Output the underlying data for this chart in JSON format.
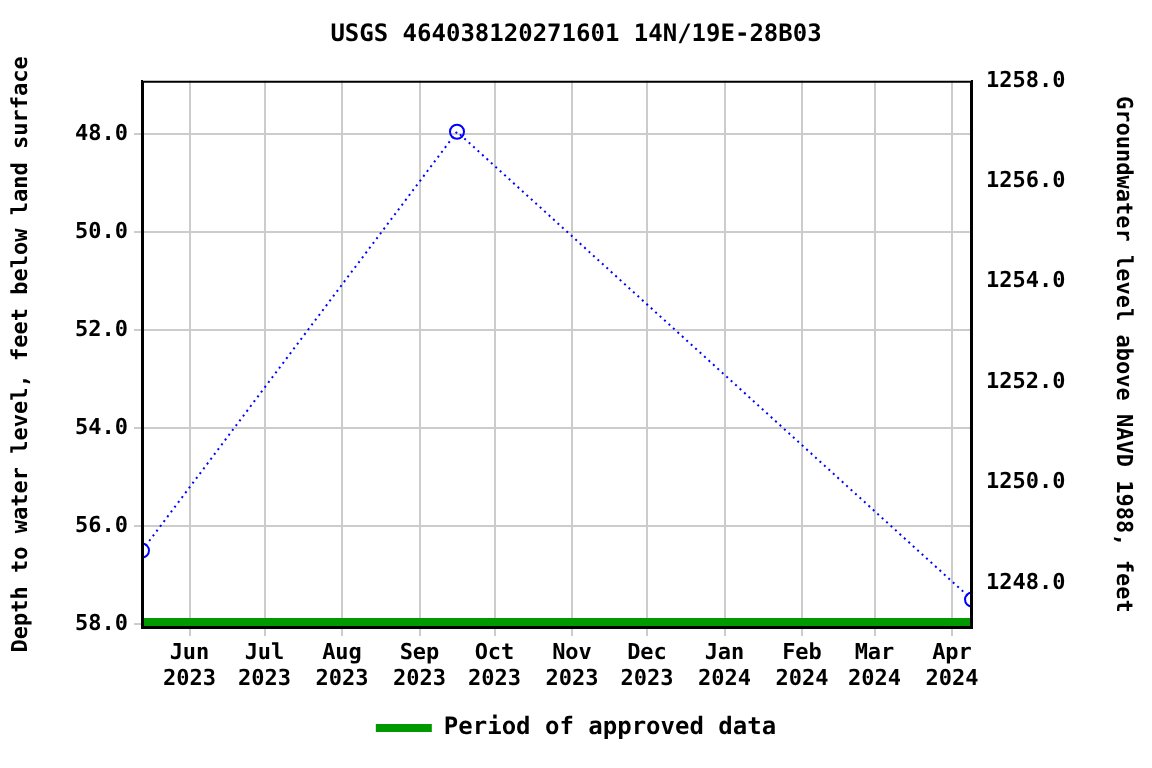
{
  "chart_data": {
    "type": "line",
    "title": "USGS 464038120271601 14N/19E-28B03",
    "ylabel": "Depth to water level, feet below land surface",
    "y2label": "Groundwater level above NAVD 1988, feet",
    "x": [
      "2023-05-13",
      "2023-09-16",
      "2024-04-09"
    ],
    "series": [
      {
        "color": "#0000ff",
        "values": [
          56.5,
          47.95,
          57.5
        ]
      },
      {
        "name": "Period of approved data",
        "type": "line",
        "line_style": "solid",
        "marker": "none",
        "color": "#009900",
        "x": [
          "2023-05-13",
          "2024-04-09"
        ],
        "values": [
          57.96,
          57.96
        ]
      }
    ],
    "xlim": [
      "2023-05-13",
      "2024-04-09"
    ],
    "xticks": [
      {
        "value": "2023-06-01",
        "label": "Jun 2023"
      },
      {
        "value": "2023-07-01",
        "label": "Jul 2023"
      },
      {
        "value": "2023-08-01",
        "label": "Aug 2023"
      },
      {
        "value": "2023-09-01",
        "label": "Sep 2023"
      },
      {
        "value": "2023-10-01",
        "label": "Oct 2023"
      },
      {
        "value": "2023-11-01",
        "label": "Nov 2023"
      },
      {
        "value": "2023-12-01",
        "label": "Dec 2023"
      },
      {
        "value": "2024-01-01",
        "label": "Jan 2024"
      },
      {
        "value": "2024-02-01",
        "label": "Feb 2024"
      },
      {
        "value": "2024-03-01",
        "label": "Mar 2024"
      },
      {
        "value": "2024-04-01",
        "label": "Apr 2024"
      }
    ],
    "ylim": [
      58.08,
      46.91
    ],
    "yticks": [
      {
        "value": 48,
        "label": "48.0"
      },
      {
        "value": 50,
        "label": "50.0"
      },
      {
        "value": 52,
        "label": "52.0"
      },
      {
        "value": 54,
        "label": "54.0"
      },
      {
        "value": 56,
        "label": "56.0"
      },
      {
        "value": 58,
        "label": "58.0"
      }
    ],
    "y2lim": [
      1247.1,
      1258.0
    ],
    "y2ticks": [
      {
        "value": 1248,
        "label": "1248.0"
      },
      {
        "value": 1250,
        "label": "1250.0"
      },
      {
        "value": 1252,
        "label": "1252.0"
      },
      {
        "value": 1254,
        "label": "1254.0"
      },
      {
        "value": 1256,
        "label": "1256.0"
      },
      {
        "value": 1258,
        "label": "1258.0"
      }
    ],
    "grid": true,
    "legend": "bottom",
    "marker": "circle",
    "line_style": "dotted"
  }
}
